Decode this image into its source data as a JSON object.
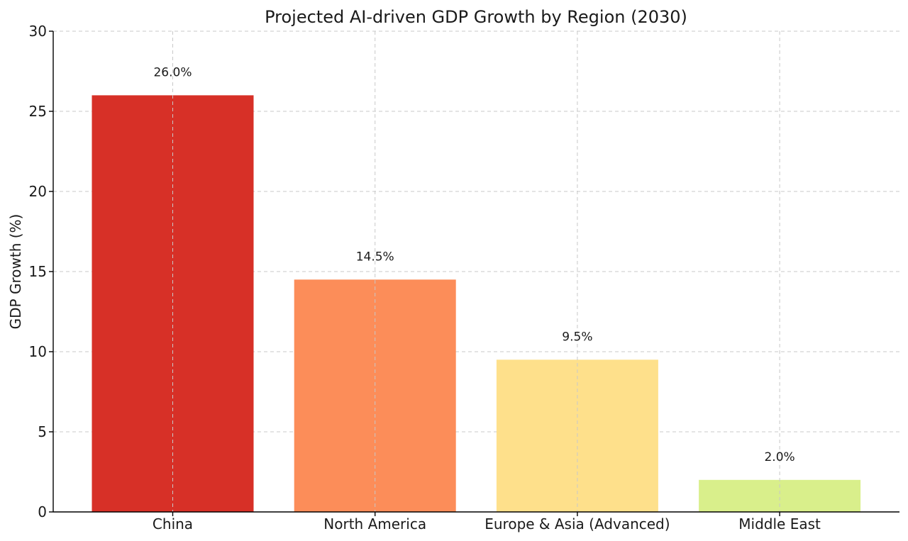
{
  "chart_data": {
    "type": "bar",
    "title": "Projected AI-driven GDP Growth by Region (2030)",
    "xlabel": "",
    "ylabel": "GDP Growth (%)",
    "categories": [
      "China",
      "North America",
      "Europe & Asia (Advanced)",
      "Middle East"
    ],
    "values": [
      26.0,
      14.5,
      9.5,
      2.0
    ],
    "value_labels": [
      "26.0%",
      "14.5%",
      "9.5%",
      "2.0%"
    ],
    "colors": [
      "#d73027",
      "#fc8d59",
      "#fee08b",
      "#d9ef8b"
    ],
    "ylim": [
      0,
      30
    ],
    "yticks": [
      0,
      5,
      10,
      15,
      20,
      25,
      30
    ],
    "grid": true,
    "legend": "none"
  }
}
